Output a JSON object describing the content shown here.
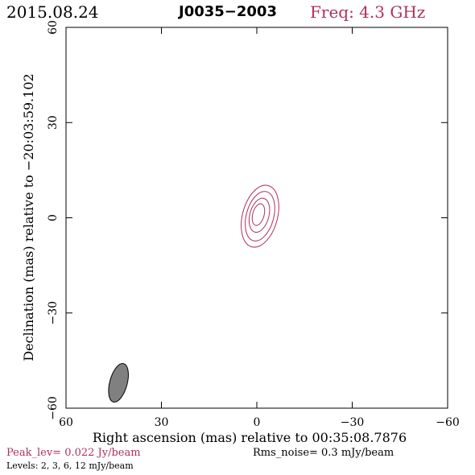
{
  "header": {
    "date": "2015.08.24",
    "source": "J0035−2003",
    "frequency": "Freq: 4.3 GHz"
  },
  "colors": {
    "contour": "#b0305a",
    "beam": "#808080",
    "text_accent": "#b0305a"
  },
  "chart_data": {
    "type": "contour",
    "xlabel": "Right ascension (mas) relative to 00:35:08.7876",
    "ylabel": "Declination (mas) relative to −20:03:59.102",
    "xlim": [
      60,
      -60
    ],
    "ylim": [
      -60,
      60
    ],
    "x_ticks": [
      60,
      30,
      0,
      -30,
      -60
    ],
    "y_ticks": [
      -60,
      -30,
      0,
      30,
      60
    ],
    "x_tick_labels": [
      "60",
      "30",
      "0",
      "−30",
      "−60"
    ],
    "y_tick_labels": [
      "−60",
      "−30",
      "0",
      "30",
      "60"
    ],
    "contours": [
      {
        "level": 2,
        "center": [
          -1.0,
          0.5
        ],
        "semi_major": 10.0,
        "semi_minor": 5.5,
        "pa_deg": 15
      },
      {
        "level": 3,
        "center": [
          -1.0,
          0.5
        ],
        "semi_major": 8.0,
        "semi_minor": 4.3,
        "pa_deg": 15
      },
      {
        "level": 6,
        "center": [
          -0.8,
          0.8
        ],
        "semi_major": 5.5,
        "semi_minor": 3.0,
        "pa_deg": 15
      },
      {
        "level": 12,
        "center": [
          -0.5,
          1.0
        ],
        "semi_major": 3.5,
        "semi_minor": 1.8,
        "pa_deg": 15
      }
    ],
    "beam": {
      "center": [
        43.5,
        -52.0
      ],
      "major": 12.5,
      "minor": 5.5,
      "pa_deg": 15
    },
    "peak_level": "Peak_lev=  0.022 Jy/beam",
    "rms_noise": "Rms_noise=   0.3 mJy/beam",
    "levels": "Levels:   2,   3,   6,   12 mJy/beam"
  }
}
